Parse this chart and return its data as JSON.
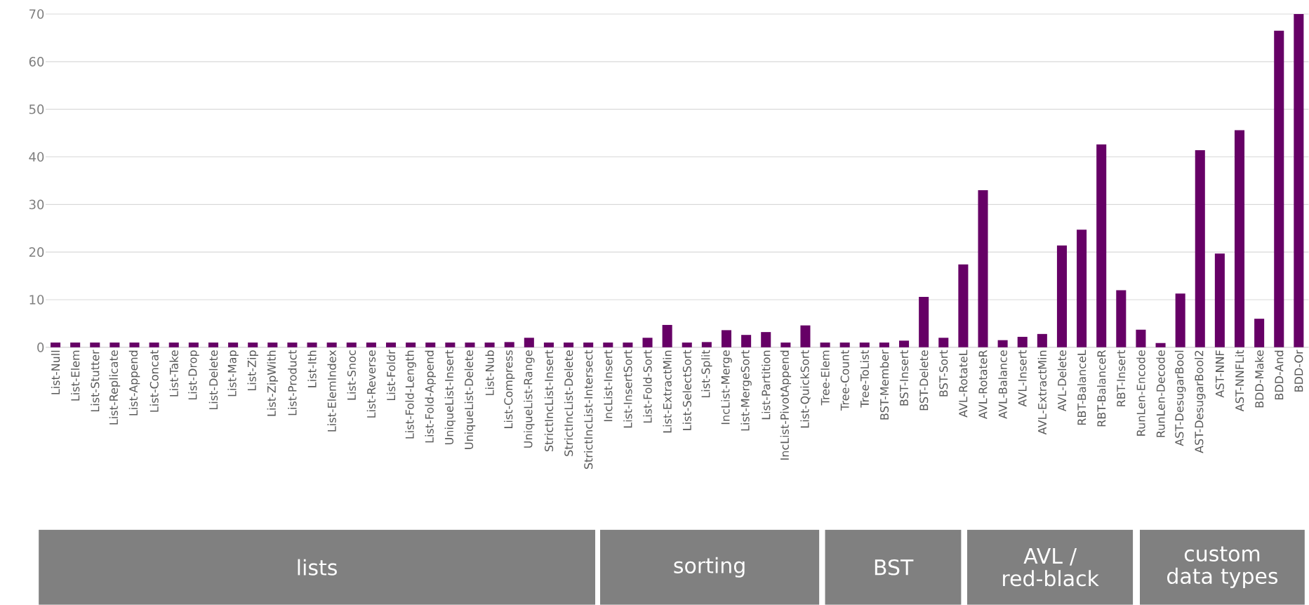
{
  "chart_data": {
    "type": "bar",
    "categories": [
      "List-Null",
      "List-Elem",
      "List-Stutter",
      "List-Replicate",
      "List-Append",
      "List-Concat",
      "List-Take",
      "List-Drop",
      "List-Delete",
      "List-Map",
      "List-Zip",
      "List-ZipWith",
      "List-Product",
      "List-Ith",
      "List-ElemIndex",
      "List-Snoc",
      "List-Reverse",
      "List-Foldr",
      "List-Fold-Length",
      "List-Fold-Append",
      "UniqueList-Insert",
      "UniqueList-Delete",
      "List-Nub",
      "List-Compress",
      "UniqueList-Range",
      "StrictIncList-Insert",
      "StrictIncList-Delete",
      "StrictIncList-Intersect",
      "IncList-Insert",
      "List-InsertSort",
      "List-Fold-Sort",
      "List-ExtractMin",
      "List-SelectSort",
      "List-Split",
      "IncList-Merge",
      "List-MergeSort",
      "List-Partition",
      "IncList-PivotAppend",
      "List-QuickSort",
      "Tree-Elem",
      "Tree-Count",
      "Tree-ToList",
      "BST-Member",
      "BST-Insert",
      "BST-Delete",
      "BST-Sort",
      "AVL-RotateL",
      "AVL-RotateR",
      "AVL-Balance",
      "AVL-Insert",
      "AVL-ExtractMin",
      "AVL-Delete",
      "RBT-BalanceL",
      "RBT-BalanceR",
      "RBT-Insert",
      "RunLen-Encode",
      "RunLen-Decode",
      "AST-DesugarBool",
      "AST-DesugarBool2",
      "AST-NNF",
      "AST-NNFLit",
      "BDD-Make",
      "BDD-And",
      "BDD-Or"
    ],
    "values": [
      1.0,
      1.0,
      1.0,
      1.0,
      1.0,
      1.0,
      1.0,
      1.0,
      1.0,
      1.0,
      1.0,
      1.0,
      1.0,
      1.0,
      1.0,
      1.0,
      1.0,
      1.0,
      1.0,
      1.0,
      1.0,
      1.0,
      1.0,
      1.1,
      2.0,
      1.0,
      1.0,
      1.0,
      1.0,
      1.0,
      2.0,
      4.7,
      1.0,
      1.1,
      3.6,
      2.6,
      3.2,
      1.0,
      4.6,
      1.0,
      1.0,
      1.0,
      1.0,
      1.4,
      10.6,
      2.0,
      17.4,
      33.0,
      1.5,
      2.2,
      2.8,
      21.4,
      24.7,
      42.6,
      12.0,
      3.7,
      0.9,
      11.3,
      41.4,
      19.7,
      45.6,
      6.0,
      66.5,
      70.0
    ],
    "color": "#660066",
    "ylim": [
      0,
      70
    ],
    "yticks": [
      0,
      10,
      20,
      30,
      40,
      50,
      60,
      70
    ],
    "grid": "y",
    "annotations": [
      "lists",
      "sorting",
      "BST",
      "AVL / red-black",
      "custom data types"
    ]
  }
}
